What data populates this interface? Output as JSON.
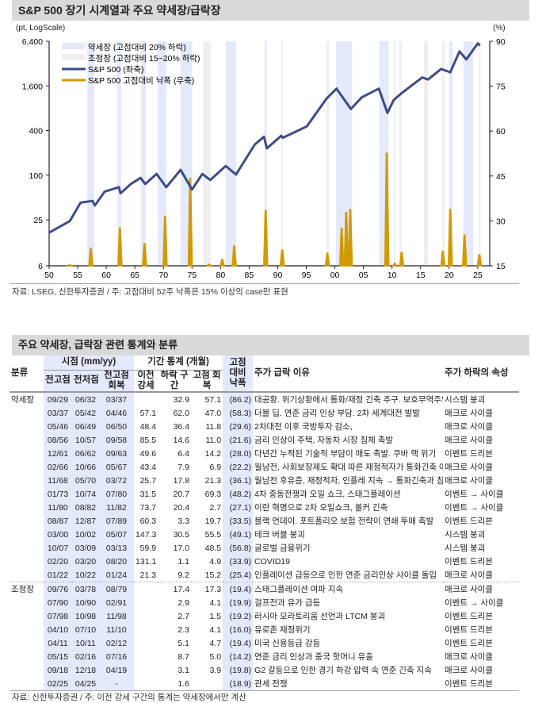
{
  "chart_title": "S&P 500 장기 시계열과 주요 약세장/급락장",
  "chart_data": {
    "type": "line",
    "title": "S&P 500 장기 시계열과 주요 약세장/급락장",
    "ylabel_left": "(pt, LogScale)",
    "ylabel_right": "(%)",
    "x_ticks": [
      "50",
      "55",
      "60",
      "65",
      "70",
      "75",
      "80",
      "85",
      "90",
      "95",
      "00",
      "05",
      "10",
      "15",
      "20",
      "25"
    ],
    "x_range": [
      1950,
      2027.1
    ],
    "y_left_ticks": [
      "6",
      "25",
      "100",
      "400",
      "1,600",
      "6,400"
    ],
    "y_left_values": [
      6,
      25,
      100,
      400,
      1600,
      6400
    ],
    "y_left_scale": "log",
    "y_right_ticks": [
      "15",
      "30",
      "45",
      "60",
      "75",
      "90"
    ],
    "y_right_range": [
      15,
      90
    ],
    "legend": [
      {
        "label": "약세장 (고점대비 20% 하락)",
        "color": "#e4e9fc",
        "kind": "band"
      },
      {
        "label": "조정장 (고점대비 15~20% 하락)",
        "color": "#efefef",
        "kind": "band"
      },
      {
        "label": "S&P 500 (좌축)",
        "color": "#3d4c86",
        "kind": "line"
      },
      {
        "label": "S&P 500 고점대비 낙폭 (우축)",
        "color": "#d19a00",
        "kind": "line"
      }
    ],
    "legend_position": "top-left",
    "bear_periods": [
      [
        1956.7,
        1957.9
      ],
      [
        1961.9,
        1962.6
      ],
      [
        1966.1,
        1966.9
      ],
      [
        1969.0,
        1970.5
      ],
      [
        1973.0,
        1975.0
      ],
      [
        1980.9,
        1982.7
      ],
      [
        1987.7,
        1988.1
      ],
      [
        2000.2,
        2003.0
      ],
      [
        2007.8,
        2009.4
      ],
      [
        2020.0,
        2020.6
      ],
      [
        2022.5,
        2024.2
      ]
    ],
    "correction_periods": [
      [
        1976.9,
        1978.3
      ],
      [
        1990.6,
        1990.9
      ],
      [
        1998.5,
        1999.0
      ],
      [
        2010.3,
        2010.6
      ],
      [
        2011.3,
        2011.7
      ],
      [
        2015.6,
        2016.3
      ],
      [
        2018.8,
        2019.2
      ],
      [
        2025.2,
        2025.4
      ]
    ],
    "sp500": {
      "x": [
        1950,
        1953.6,
        1955.5,
        1957.6,
        1958,
        1959.7,
        1962.2,
        1962.5,
        1964.3,
        1966,
        1966.8,
        1968.8,
        1970.5,
        1973,
        1975,
        1976.8,
        1978.2,
        1980.9,
        1982.7,
        1986,
        1987.6,
        1988.1,
        1990.6,
        1990.9,
        1995.1,
        1998.5,
        2000.3,
        2002.8,
        2004.7,
        2007.7,
        2009.2,
        2010.3,
        2011.7,
        2015.3,
        2016.3,
        2018.6,
        2020.2,
        2021.8,
        2023,
        2025,
        2025.4
      ],
      "y": [
        16.8,
        24,
        42.6,
        45,
        39,
        60,
        69,
        57,
        76,
        92,
        76,
        104,
        69,
        118,
        64,
        104,
        86,
        133,
        102,
        260,
        330,
        230,
        340,
        320,
        455,
        1070,
        1470,
        780,
        1120,
        1470,
        690,
        1030,
        1280,
        2080,
        1950,
        2710,
        2440,
        4670,
        3640,
        5990,
        5600
      ]
    },
    "drawdown_events": [
      {
        "peak_x": 1953.6,
        "value": 15.3
      },
      {
        "peak_x": 1957.3,
        "value": 20.8
      },
      {
        "peak_x": 1962.4,
        "value": 27.7
      },
      {
        "peak_x": 1966.7,
        "value": 22.4
      },
      {
        "peak_x": 1970.3,
        "value": 31.4
      },
      {
        "peak_x": 1974.7,
        "value": 44.2
      },
      {
        "peak_x": 1978.0,
        "value": 15.5
      },
      {
        "peak_x": 1980.3,
        "value": 17.1
      },
      {
        "peak_x": 1982.4,
        "value": 21.6
      },
      {
        "peak_x": 1987.9,
        "value": 33.5
      },
      {
        "peak_x": 1990.8,
        "value": 20.3
      },
      {
        "peak_x": 1998.7,
        "value": 19.2
      },
      {
        "peak_x": 2001.2,
        "value": 27.5
      },
      {
        "peak_x": 2002.0,
        "value": 32.8
      },
      {
        "peak_x": 2002.7,
        "value": 33.8
      },
      {
        "peak_x": 2009.1,
        "value": 52.6
      },
      {
        "peak_x": 2010.5,
        "value": 15.8
      },
      {
        "peak_x": 2011.7,
        "value": 19.5
      },
      {
        "peak_x": 2018.9,
        "value": 19.8
      },
      {
        "peak_x": 2020.2,
        "value": 33.8
      },
      {
        "peak_x": 2022.7,
        "value": 25.3
      },
      {
        "peak_x": 2025.3,
        "value": 18.7
      }
    ]
  },
  "chart_source": "자료: LSEG, 신한투자증권 / 주: 고점대비 52주 낙폭은 15% 이상의 case만 표현",
  "table": {
    "title": "주요 약세장, 급락장 관련 통계와 분류",
    "headers": {
      "category": "분류",
      "timing_group": "시점 (mm/yy)",
      "prev_high": "전고점",
      "prev_low": "전저점",
      "recovery": "전고점 회복",
      "stats_group": "기간 통계 (개월)",
      "prior_bull": "이전 강세",
      "decline": "하락 구간",
      "high_recovery": "고점 회복",
      "drawdown": "고점 대비 낙폭",
      "reason": "주가 급락 이유",
      "attribute": "주가 하락의 속성"
    },
    "groups": [
      {
        "label": "약세장",
        "rows": [
          [
            "09/29",
            "06/32",
            "03/37",
            "",
            "32.9",
            "57.1",
            "(86.2)",
            "대공황. 위기상황에서 통화/재정 긴축 추구. 보호무역주의",
            "시스템 붕괴"
          ],
          [
            "03/37",
            "05/42",
            "04/46",
            "57.1",
            "62.0",
            "47.0",
            "(58.3)",
            "더블 딥. 연준 금리 인상 부담. 2차 세계대전 발발",
            "매크로 사이클"
          ],
          [
            "05/46",
            "06/49",
            "06/50",
            "48.4",
            "36.4",
            "11.8",
            "(29.6)",
            "2차대전 이후 국방투자 감소,",
            "매크로 사이클"
          ],
          [
            "08/56",
            "10/57",
            "09/58",
            "85.5",
            "14.6",
            "11.0",
            "(21.6)",
            "금리 인상이 주택, 자동차 시장 침체 촉발",
            "매크로 사이클"
          ],
          [
            "12/61",
            "06/62",
            "09/63",
            "49.6",
            "6.4",
            "14.2",
            "(28.0)",
            "다년간 누적된 기술적 부담이 매도 촉발. 쿠바 핵 위기",
            "이벤트 드리븐"
          ],
          [
            "02/66",
            "10/66",
            "05/67",
            "43.4",
            "7.9",
            "6.9",
            "(22.2)",
            "월남전, 사회보장제도 확대 따른 재정적자가 통화긴축 야기",
            "매크로 사이클"
          ],
          [
            "11/68",
            "05/70",
            "03/72",
            "25.7",
            "17.8",
            "21.3",
            "(36.1)",
            "월남전 후유증, 재정적자, 인플레 지속 → 통화긴축과 침체",
            "매크로 사이클"
          ],
          [
            "01/73",
            "10/74",
            "07/80",
            "31.5",
            "20.7",
            "69.3",
            "(48.2)",
            "4차 중동전쟁과 오일 쇼크, 스태그플레이션",
            "이벤트 → 사이클"
          ],
          [
            "11/80",
            "08/82",
            "11/82",
            "73.7",
            "20.4",
            "2.7",
            "(27.1)",
            "이란 혁명으로 2차 오일쇼크, 볼커 긴축",
            "이벤트 → 사이클"
          ],
          [
            "08/87",
            "12/87",
            "07/89",
            "60.3",
            "3.3",
            "19.7",
            "(33.5)",
            "블랙 먼데이. 포트폴리오 보험 전략이 연쇄 투매 촉발",
            "이벤트 드리븐"
          ],
          [
            "03/00",
            "10/02",
            "05/07",
            "147.3",
            "30.5",
            "55.5",
            "(49.1)",
            "테크 버블 붕괴",
            "시스템 붕괴"
          ],
          [
            "10/07",
            "03/09",
            "03/13",
            "59.9",
            "17.0",
            "48.5",
            "(56.8)",
            "글로벌 금융위기",
            "시스템 붕괴"
          ],
          [
            "02/20",
            "03/20",
            "08/20",
            "131.1",
            "1.1",
            "4.9",
            "(33.9)",
            "COVID19",
            "이벤트 드리븐"
          ],
          [
            "01/22",
            "10/22",
            "01/24",
            "21.3",
            "9.2",
            "15.2",
            "(25.4)",
            "인플레이션 급등으로 인한 연준 금리인상 사이클 돌입",
            "매크로 사이클"
          ]
        ]
      },
      {
        "label": "조정장",
        "rows": [
          [
            "09/76",
            "03/78",
            "08/79",
            "",
            "17.4",
            "17.3",
            "(19.4)",
            "스태그플레이션 여파 지속",
            "매크로 사이클"
          ],
          [
            "07/90",
            "10/90",
            "02/91",
            "",
            "2.9",
            "4.1",
            "(19.9)",
            "걸프전과 유가 급등",
            "이벤트 → 사이클"
          ],
          [
            "07/98",
            "10/98",
            "11/98",
            "",
            "2.7",
            "1.5",
            "(19.2)",
            "러시아 모라토리움 선언과 LTCM 붕괴",
            "이벤트 드리븐"
          ],
          [
            "04/10",
            "07/10",
            "11/10",
            "",
            "2.3",
            "4.1",
            "(16.0)",
            "유로존 재정위기",
            "이벤트 드리븐"
          ],
          [
            "04/11",
            "10/11",
            "02/12",
            "",
            "5.1",
            "4.7",
            "(19.4)",
            "미국 신용등급 강등",
            "이벤트 드리븐"
          ],
          [
            "05/15",
            "02/16",
            "07/16",
            "",
            "8.7",
            "5.0",
            "(14.2)",
            "연준 금리 인상과 중국 핫머니 유출",
            "매크로 사이클"
          ],
          [
            "09/18",
            "12/18",
            "04/19",
            "",
            "3.1",
            "3.9",
            "(19.8)",
            "G2 갈등으로 인한 경기 하강 압력 속 연준 긴축 지속",
            "매크로 사이클"
          ],
          [
            "02/25",
            "04/25",
            "-",
            "",
            "1.6",
            "",
            "(18.9)",
            "관세 전쟁",
            "이벤트 드리븐"
          ]
        ]
      }
    ],
    "source": "자료: 신한투자증권 / 주: 이전 강세 구간의 통계는 약세장에서만 계산"
  }
}
